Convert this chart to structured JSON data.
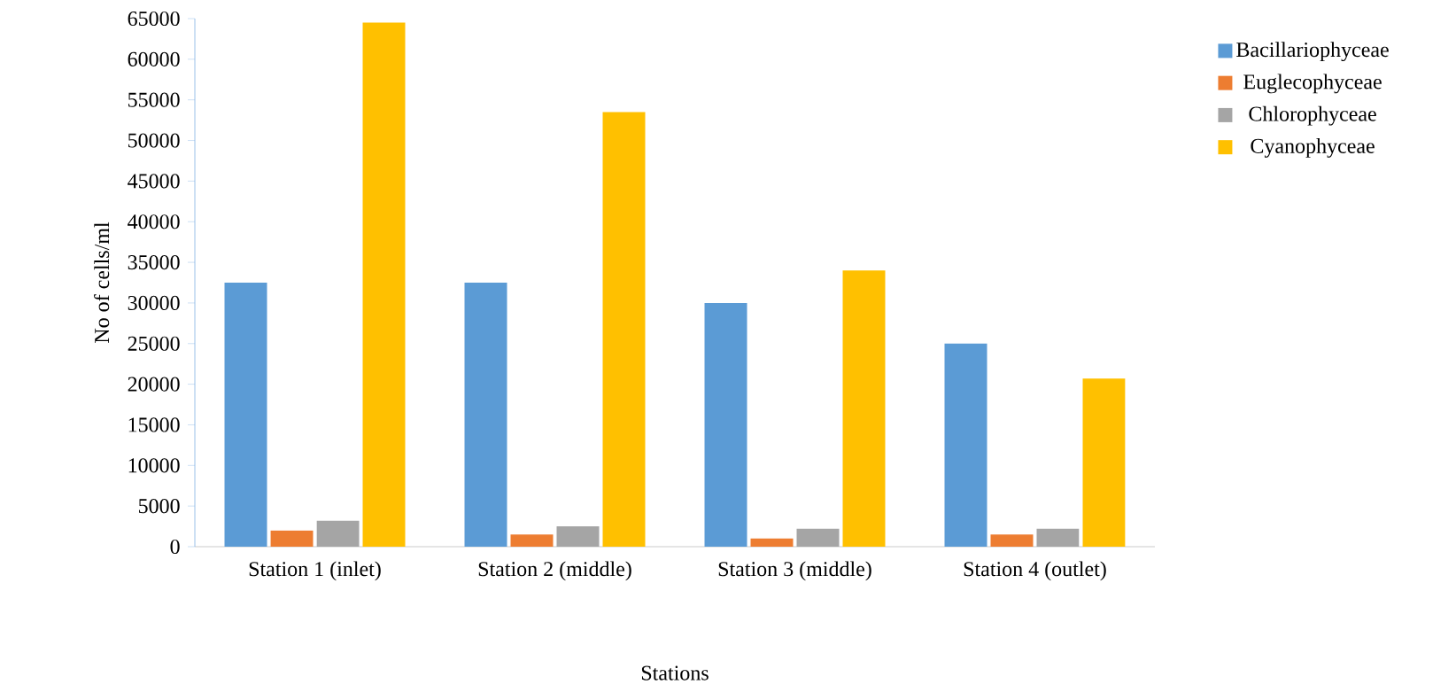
{
  "chart_data": {
    "type": "bar",
    "xlabel": "Stations",
    "ylabel": "No of cells/ml",
    "categories": [
      "Station 1 (inlet)",
      "Station 2 (middle)",
      "Station 3 (middle)",
      "Station 4 (outlet)"
    ],
    "series": [
      {
        "name": "Bacillariophyceae",
        "color": "#5b9bd5",
        "values": [
          32500,
          32500,
          30000,
          25000
        ]
      },
      {
        "name": "Euglecophyceae",
        "color": "#ed7d31",
        "values": [
          2000,
          1500,
          1000,
          1500
        ]
      },
      {
        "name": "Chlorophyceae",
        "color": "#a5a5a5",
        "values": [
          3200,
          2500,
          2200,
          2200
        ]
      },
      {
        "name": "Cyanophyceae",
        "color": "#ffc000",
        "values": [
          64500,
          53500,
          34000,
          20700
        ]
      }
    ],
    "ylim": [
      0,
      65000
    ],
    "yticks": [
      0,
      5000,
      10000,
      15000,
      20000,
      25000,
      30000,
      35000,
      40000,
      45000,
      50000,
      55000,
      60000,
      65000
    ],
    "grid": false,
    "legend": "right"
  }
}
